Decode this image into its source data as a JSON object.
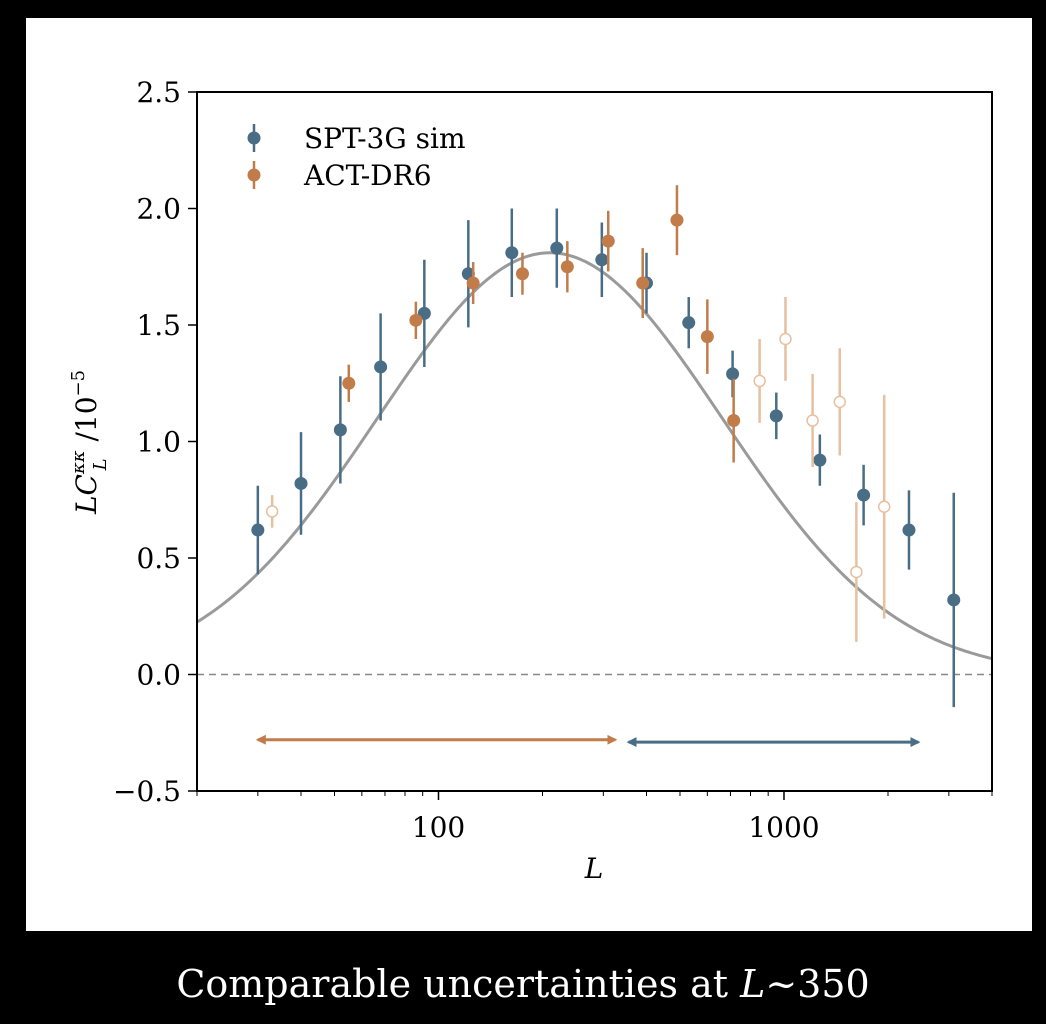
{
  "caption": {
    "before": "Comparable uncertainties at ",
    "italic": "L",
    "after": "~350"
  },
  "chart_data": {
    "type": "scatter",
    "xscale": "log",
    "xlim": [
      20,
      4000
    ],
    "ylim": [
      -0.5,
      2.5
    ],
    "xticks": [
      {
        "value": 100,
        "label": "100"
      },
      {
        "value": 1000,
        "label": "1000"
      }
    ],
    "yticks": [
      {
        "value": -0.5,
        "label": "−0.5"
      },
      {
        "value": 0.0,
        "label": "0.0"
      },
      {
        "value": 0.5,
        "label": "0.5"
      },
      {
        "value": 1.0,
        "label": "1.0"
      },
      {
        "value": 1.5,
        "label": "1.5"
      },
      {
        "value": 2.0,
        "label": "2.0"
      },
      {
        "value": 2.5,
        "label": "2.5"
      }
    ],
    "xlabel": "L",
    "ylabel": {
      "main": "LC",
      "sup": "κκ",
      "sub": "L",
      "rest": " /10",
      "exp": "−5"
    },
    "legend": {
      "placement": "top-left"
    },
    "grid": false,
    "colors": {
      "spt": "#4a6d86",
      "act": "#c27c4a",
      "act_faded": "#e6c09f",
      "theory": "#9a9a9a",
      "zero_line": "#888888"
    },
    "series": [
      {
        "name": "SPT-3G sim",
        "color": "#4a6d86",
        "points": [
          {
            "x": 30,
            "y": 0.62,
            "err": 0.19
          },
          {
            "x": 40,
            "y": 0.82,
            "err": 0.22
          },
          {
            "x": 52,
            "y": 1.05,
            "err": 0.23
          },
          {
            "x": 68,
            "y": 1.32,
            "err": 0.23
          },
          {
            "x": 91,
            "y": 1.55,
            "err": 0.23
          },
          {
            "x": 122,
            "y": 1.72,
            "err": 0.23
          },
          {
            "x": 163,
            "y": 1.81,
            "err": 0.19
          },
          {
            "x": 220,
            "y": 1.83,
            "err": 0.17
          },
          {
            "x": 297,
            "y": 1.78,
            "err": 0.16
          },
          {
            "x": 400,
            "y": 1.68,
            "err": 0.13
          },
          {
            "x": 530,
            "y": 1.51,
            "err": 0.11
          },
          {
            "x": 710,
            "y": 1.29,
            "err": 0.1
          },
          {
            "x": 950,
            "y": 1.11,
            "err": 0.1
          },
          {
            "x": 1270,
            "y": 0.92,
            "err": 0.11
          },
          {
            "x": 1700,
            "y": 0.77,
            "err": 0.13
          },
          {
            "x": 2300,
            "y": 0.62,
            "err": 0.17
          },
          {
            "x": 3100,
            "y": 0.32,
            "err": 0.46
          }
        ]
      },
      {
        "name": "ACT-DR6",
        "color": "#c27c4a",
        "points": [
          {
            "x": 33,
            "y": 0.7,
            "err": 0.07,
            "faded": true
          },
          {
            "x": 55,
            "y": 1.25,
            "err": 0.08
          },
          {
            "x": 86,
            "y": 1.52,
            "err": 0.08
          },
          {
            "x": 126,
            "y": 1.68,
            "err": 0.09
          },
          {
            "x": 175,
            "y": 1.72,
            "err": 0.09
          },
          {
            "x": 236,
            "y": 1.75,
            "err": 0.11
          },
          {
            "x": 310,
            "y": 1.86,
            "err": 0.13
          },
          {
            "x": 390,
            "y": 1.68,
            "err": 0.15
          },
          {
            "x": 490,
            "y": 1.95,
            "err": 0.15
          },
          {
            "x": 600,
            "y": 1.45,
            "err": 0.16
          },
          {
            "x": 715,
            "y": 1.09,
            "err": 0.18
          },
          {
            "x": 850,
            "y": 1.26,
            "err": 0.18,
            "faded": true
          },
          {
            "x": 1010,
            "y": 1.44,
            "err": 0.18,
            "faded": true
          },
          {
            "x": 1210,
            "y": 1.09,
            "err": 0.2,
            "faded": true
          },
          {
            "x": 1450,
            "y": 1.17,
            "err": 0.23,
            "faded": true
          },
          {
            "x": 1620,
            "y": 0.44,
            "err": 0.3,
            "faded": true
          },
          {
            "x": 1950,
            "y": 0.72,
            "err": 0.48,
            "faded": true
          }
        ]
      }
    ],
    "theory_curve": {
      "peak_x": 210,
      "peak_y": 1.81,
      "log_sigma": 0.5
    },
    "arrows": [
      {
        "from_x": 30,
        "to_x": 325,
        "y": -0.28,
        "color": "#c27c4a"
      },
      {
        "from_x": 355,
        "to_x": 2450,
        "y": -0.29,
        "color": "#4a6d86"
      }
    ]
  }
}
